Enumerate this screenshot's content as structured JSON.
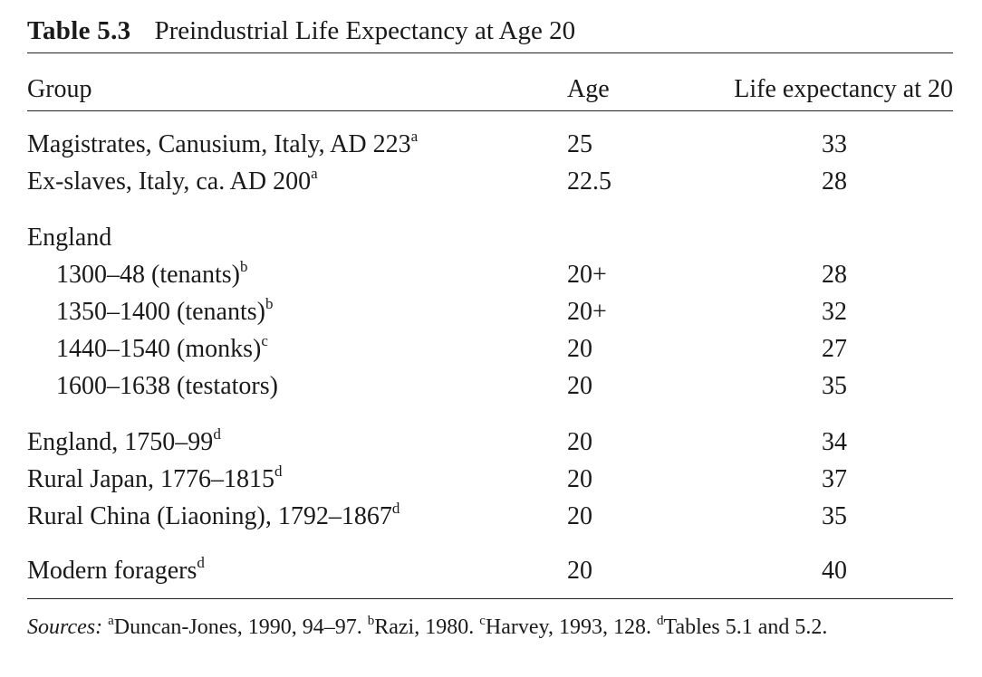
{
  "table": {
    "label": "Table 5.3",
    "title": "Preindustrial Life Expectancy at Age 20",
    "headers": {
      "group": "Group",
      "age": "Age",
      "life": "Life expectancy at 20"
    },
    "rows": [
      {
        "group": "Magistrates, Canusium, Italy, AD 223",
        "note": "a",
        "age": "25",
        "life": "33"
      },
      {
        "group": "Ex-slaves, Italy, ca. AD 200",
        "note": "a",
        "age": "22.5",
        "life": "28"
      },
      {
        "group": "England",
        "note": "",
        "age": "",
        "life": ""
      },
      {
        "group": "1300–48 (tenants)",
        "note": "b",
        "age": "20+",
        "life": "28"
      },
      {
        "group": "1350–1400 (tenants)",
        "note": "b",
        "age": "20+",
        "life": "32"
      },
      {
        "group": "1440–1540 (monks)",
        "note": "c",
        "age": "20",
        "life": "27"
      },
      {
        "group": "1600–1638 (testators)",
        "note": "",
        "age": "20",
        "life": "35"
      },
      {
        "group": "England, 1750–99",
        "note": "d",
        "age": "20",
        "life": "34"
      },
      {
        "group": "Rural Japan, 1776–1815",
        "note": "d",
        "age": "20",
        "life": "37"
      },
      {
        "group": "Rural China (Liaoning), 1792–1867",
        "note": "d",
        "age": "20",
        "life": "35"
      },
      {
        "group": "Modern foragers",
        "note": "d",
        "age": "20",
        "life": "40"
      }
    ],
    "sources": {
      "label": "Sources:",
      "items": [
        {
          "mark": "a",
          "text": "Duncan-Jones, 1990, 94–97."
        },
        {
          "mark": "b",
          "text": "Razi, 1980."
        },
        {
          "mark": "c",
          "text": "Harvey, 1993, 128."
        },
        {
          "mark": "d",
          "text": "Tables 5.1 and 5.2."
        }
      ]
    }
  }
}
